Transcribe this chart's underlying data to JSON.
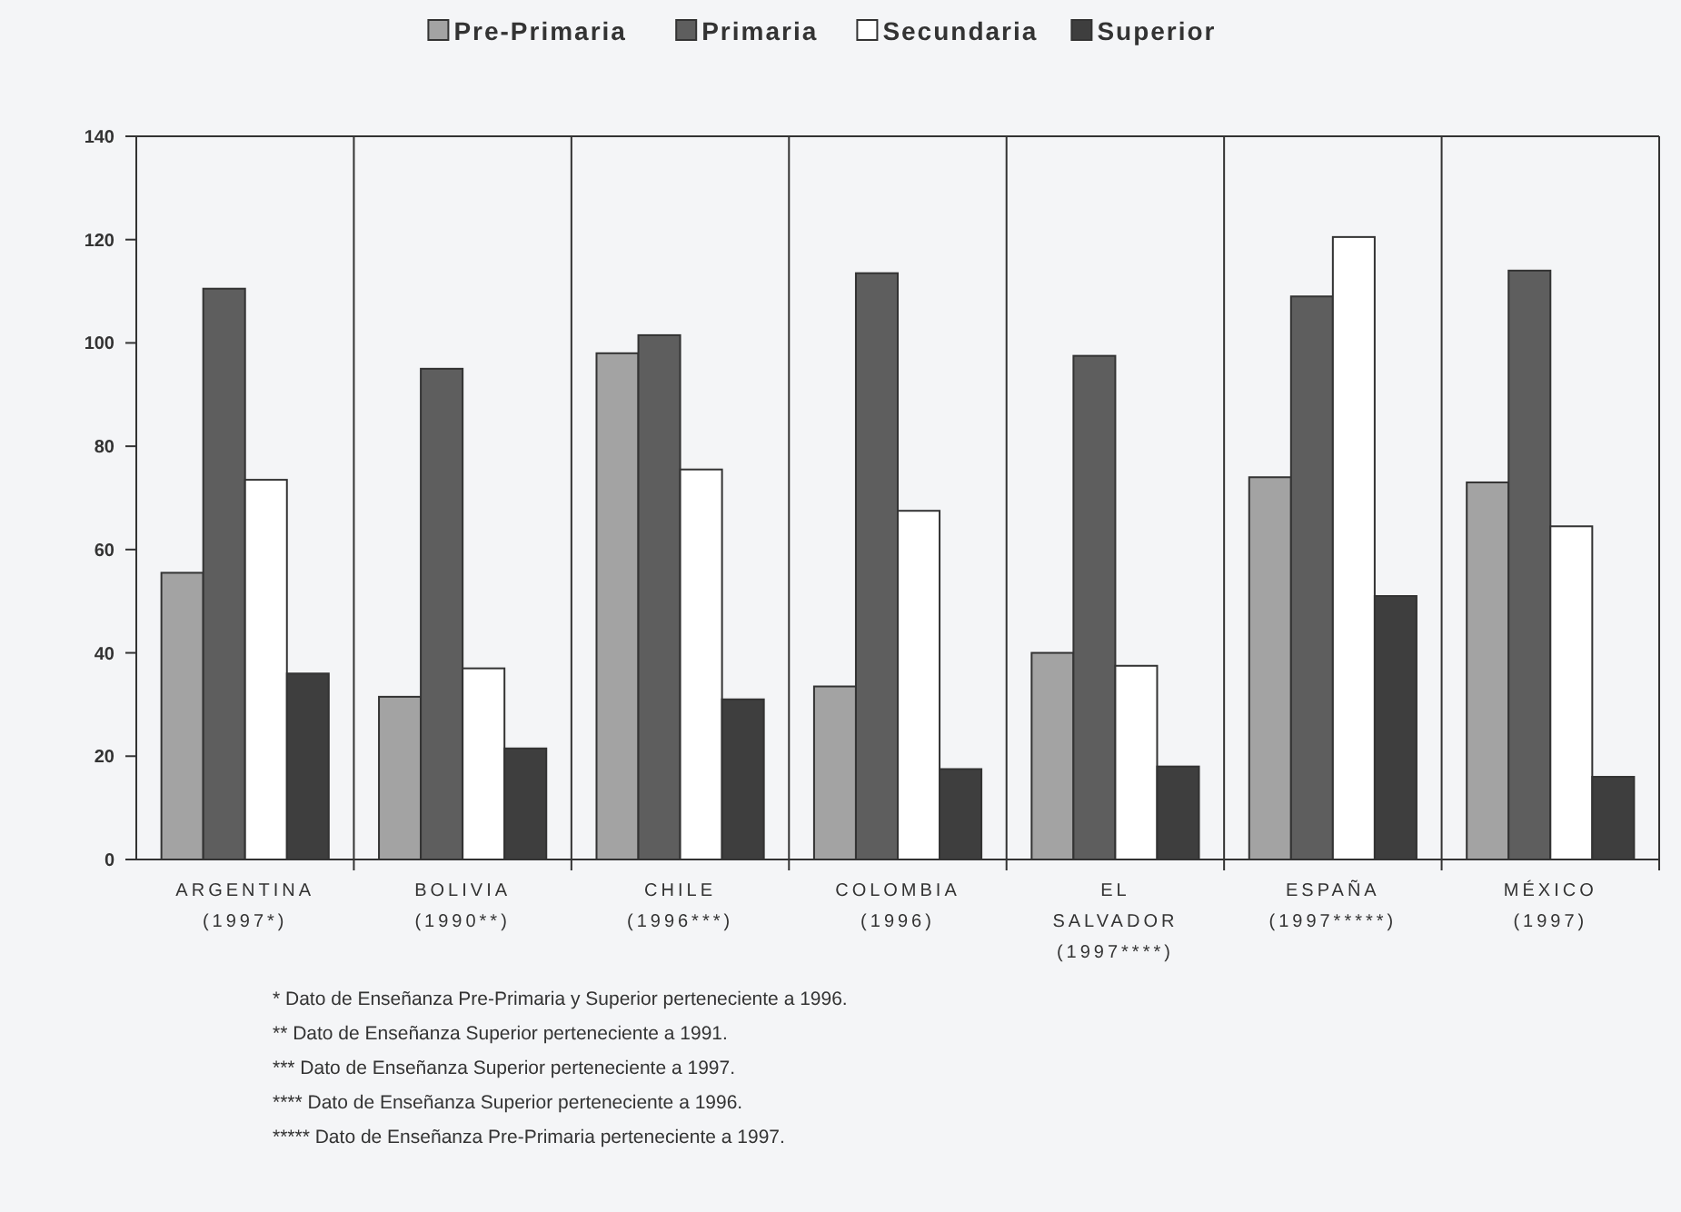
{
  "chart_data": {
    "type": "bar",
    "categories": [
      "ARGENTINA\n(1997*)",
      "BOLIVIA\n(1990**)",
      "CHILE\n(1996***)",
      "COLOMBIA\n(1996)",
      "EL\nSALVADOR\n(1997****)",
      "ESPAÑA\n(1997*****)",
      "MÉXICO\n(1997)"
    ],
    "series": [
      {
        "name": "Pre-Primaria",
        "color": "#a3a3a3",
        "values": [
          55.5,
          31.5,
          98,
          33.5,
          40,
          74,
          73
        ]
      },
      {
        "name": "Primaria",
        "color": "#5e5e5e",
        "values": [
          110.5,
          95,
          101.5,
          113.5,
          97.5,
          109,
          114
        ]
      },
      {
        "name": "Secundaria",
        "color": "#ffffff",
        "values": [
          73.5,
          37,
          75.5,
          67.5,
          37.5,
          120.5,
          64.5
        ]
      },
      {
        "name": "Superior",
        "color": "#3e3e3e",
        "values": [
          36,
          21.5,
          31,
          17.5,
          18,
          51,
          16
        ]
      }
    ],
    "ylim": [
      0,
      140
    ],
    "yticks": [
      0,
      20,
      40,
      60,
      80,
      100,
      120,
      140
    ],
    "grid": false,
    "legend": "top",
    "annotations": [
      "* Dato de Enseñanza Pre-Primaria y Superior perteneciente a 1996.",
      "** Dato de Enseñanza Superior perteneciente a 1991.",
      "*** Dato de Enseñanza Superior perteneciente a 1997.",
      "**** Dato de Enseñanza Superior perteneciente a 1996.",
      "***** Dato de Enseñanza Pre-Primaria perteneciente a 1997."
    ]
  }
}
